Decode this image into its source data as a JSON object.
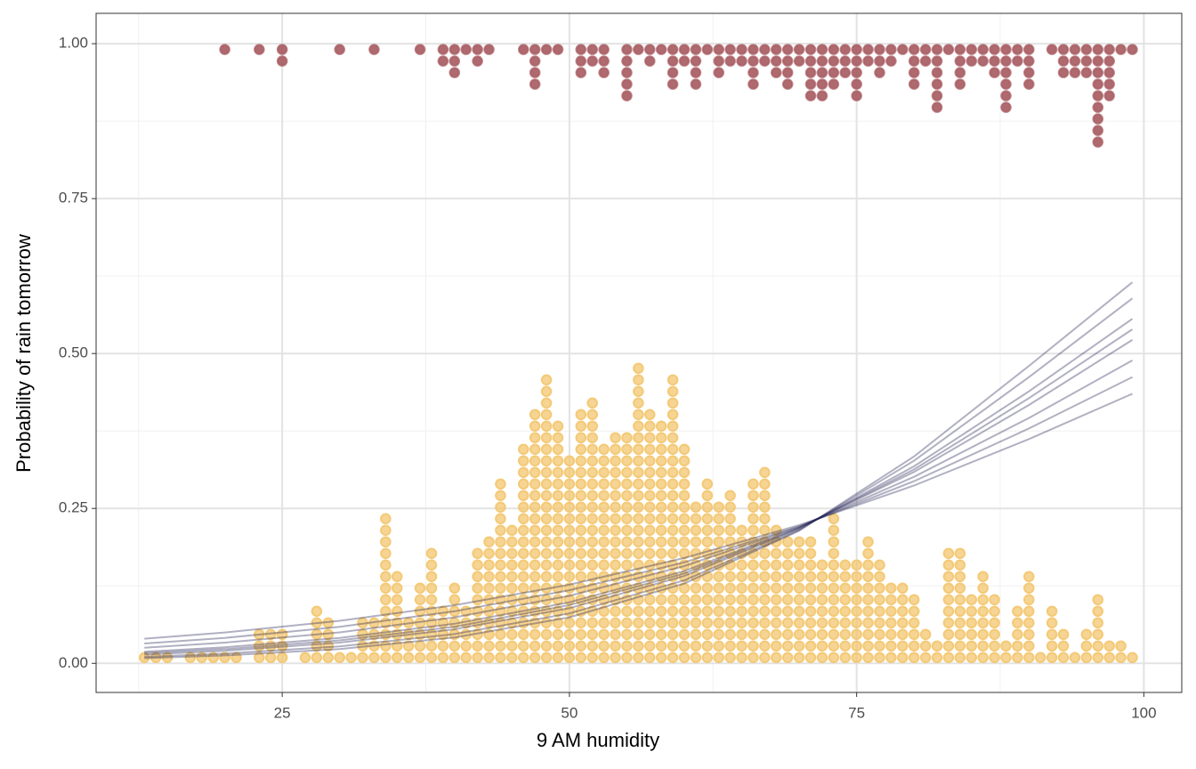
{
  "chart_data": {
    "type": "dotplot",
    "x_label": "9 AM humidity",
    "y_label": "Probability of rain tomorrow",
    "xlim": [
      8.8,
      103.3
    ],
    "ylim": [
      -0.047,
      1.049
    ],
    "xticks": [
      25,
      50,
      75,
      100
    ],
    "yticks": [
      {
        "value": 0,
        "label": "0.00"
      },
      {
        "value": 0.25,
        "label": "0.25"
      },
      {
        "value": 0.5,
        "label": "0.50"
      },
      {
        "value": 0.75,
        "label": "0.75"
      },
      {
        "value": 1,
        "label": "1.00"
      }
    ],
    "grid": true,
    "dots": [
      {
        "stack": "up",
        "base": 0,
        "color": "#f3c66f",
        "x": [
          13,
          14,
          15,
          17,
          18,
          19,
          20,
          21,
          23,
          24,
          25,
          27,
          28,
          29,
          30,
          31,
          32,
          33,
          34,
          35,
          36,
          37,
          38,
          39,
          40,
          41,
          42,
          43,
          44,
          45,
          46,
          47,
          48,
          49,
          50,
          51,
          52,
          53,
          54,
          55,
          56,
          57,
          58,
          59,
          60,
          61,
          62,
          63,
          64,
          65,
          66,
          67,
          68,
          69,
          70,
          71,
          72,
          73,
          74,
          75,
          76,
          77,
          78,
          79,
          80,
          81,
          82,
          83,
          84,
          85,
          86,
          87,
          88,
          89,
          90,
          91,
          92,
          93,
          94,
          95,
          96,
          97,
          98,
          99
        ],
        "counts": [
          1,
          1,
          1,
          1,
          1,
          1,
          1,
          1,
          3,
          3,
          3,
          1,
          5,
          4,
          1,
          1,
          4,
          4,
          13,
          8,
          4,
          7,
          10,
          5,
          7,
          5,
          10,
          11,
          16,
          12,
          19,
          22,
          25,
          21,
          18,
          22,
          23,
          19,
          20,
          20,
          26,
          22,
          21,
          25,
          19,
          14,
          16,
          14,
          15,
          12,
          16,
          17,
          12,
          11,
          11,
          11,
          9,
          13,
          9,
          9,
          11,
          9,
          7,
          7,
          6,
          3,
          2,
          10,
          10,
          6,
          8,
          6,
          2,
          5,
          8,
          1,
          5,
          3,
          1,
          3,
          6,
          2,
          2,
          1
        ]
      },
      {
        "stack": "down",
        "base": 1,
        "color": "#a65a5f",
        "x": [
          20,
          23,
          25,
          30,
          33,
          37,
          39,
          40,
          41,
          42,
          43,
          46,
          47,
          48,
          49,
          51,
          52,
          53,
          55,
          56,
          57,
          58,
          59,
          60,
          61,
          62,
          63,
          64,
          65,
          66,
          67,
          68,
          69,
          70,
          71,
          72,
          73,
          74,
          75,
          76,
          77,
          78,
          79,
          80,
          81,
          82,
          83,
          84,
          85,
          86,
          87,
          88,
          89,
          90,
          92,
          93,
          94,
          95,
          96,
          97,
          98,
          99
        ],
        "counts": [
          1,
          1,
          2,
          1,
          1,
          1,
          2,
          3,
          1,
          2,
          1,
          1,
          4,
          1,
          1,
          3,
          2,
          3,
          5,
          1,
          2,
          1,
          4,
          2,
          4,
          1,
          3,
          2,
          2,
          4,
          2,
          3,
          4,
          2,
          5,
          5,
          4,
          3,
          5,
          2,
          3,
          2,
          1,
          4,
          2,
          6,
          1,
          4,
          2,
          2,
          3,
          6,
          2,
          4,
          1,
          3,
          3,
          3,
          9,
          5,
          1,
          1
        ]
      }
    ],
    "curves": {
      "color": "#1d1d4f",
      "x": [
        13,
        20,
        30,
        40,
        50,
        60,
        70,
        80,
        90,
        99
      ],
      "series": [
        {
          "values": [
            0.0397,
            0.0498,
            0.0686,
            0.0938,
            0.127,
            0.17,
            0.223,
            0.287,
            0.362,
            0.435
          ]
        },
        {
          "values": [
            0.032,
            0.041,
            0.059,
            0.084,
            0.118,
            0.163,
            0.221,
            0.294,
            0.379,
            0.462
          ]
        },
        {
          "values": [
            0.0251,
            0.0334,
            0.05,
            0.0742,
            0.109,
            0.157,
            0.22,
            0.301,
            0.396,
            0.489
          ]
        },
        {
          "values": [
            0.0188,
            0.026,
            0.041,
            0.0639,
            0.0985,
            0.149,
            0.219,
            0.309,
            0.417,
            0.522
          ]
        },
        {
          "values": [
            0.0165,
            0.023,
            0.037,
            0.059,
            0.094,
            0.145,
            0.218,
            0.313,
            0.428,
            0.539
          ]
        },
        {
          "values": [
            0.0141,
            0.0202,
            0.0334,
            0.055,
            0.0891,
            0.141,
            0.217,
            0.318,
            0.439,
            0.556
          ]
        },
        {
          "values": [
            0.0105,
            0.0156,
            0.0272,
            0.0472,
            0.0806,
            0.134,
            0.215,
            0.327,
            0.462,
            0.589
          ]
        },
        {
          "values": [
            0.0083,
            0.0127,
            0.0231,
            0.0418,
            0.0743,
            0.129,
            0.214,
            0.334,
            0.48,
            0.615
          ]
        }
      ]
    }
  }
}
